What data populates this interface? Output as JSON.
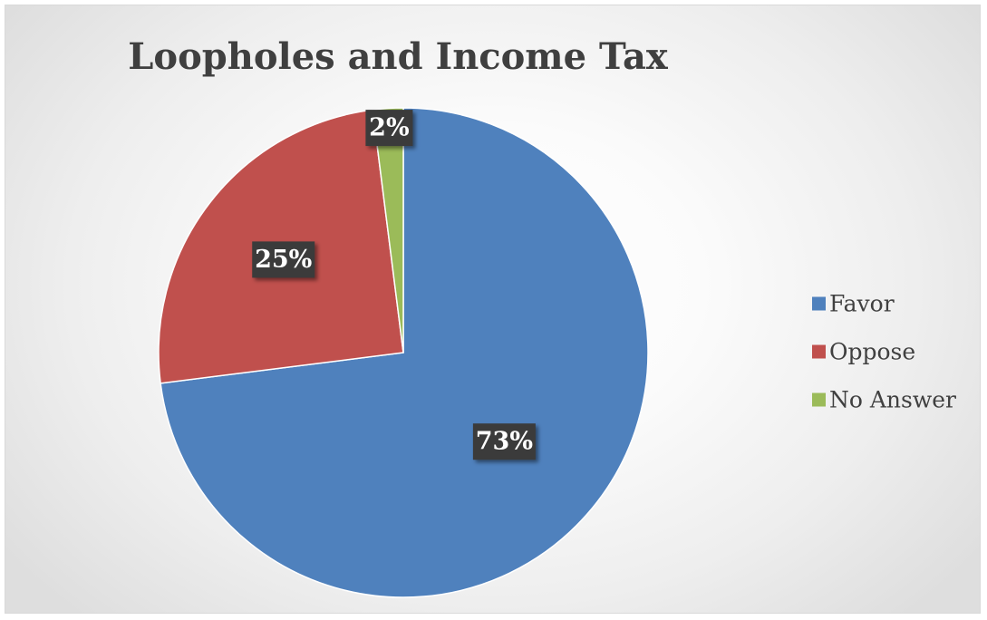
{
  "chart_data": {
    "type": "pie",
    "title": "Loopholes and Income Tax",
    "categories": [
      "Favor",
      "Oppose",
      "No Answer"
    ],
    "values": [
      73,
      25,
      2
    ],
    "labels": [
      "73%",
      "25%",
      "2%"
    ],
    "colors": [
      "#4f81bd",
      "#c0504d",
      "#9bbb59"
    ],
    "start_angle": "12 o'clock",
    "direction": "clockwise",
    "legend": "right"
  }
}
